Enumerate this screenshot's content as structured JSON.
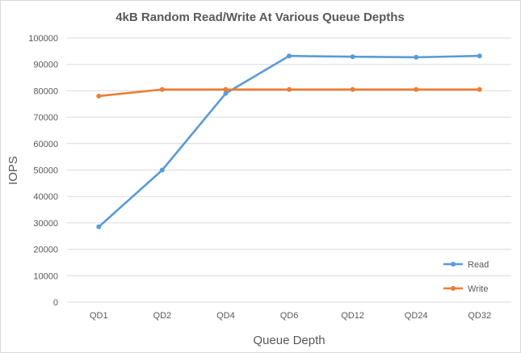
{
  "chart_data": {
    "type": "line",
    "title": "4kB Random Read/Write At Various Queue Depths",
    "xlabel": "Queue Depth",
    "ylabel": "IOPS",
    "categories": [
      "QD1",
      "QD2",
      "QD4",
      "QD6",
      "QD12",
      "QD24",
      "QD32"
    ],
    "ylim": [
      0,
      100000
    ],
    "yticks": [
      0,
      10000,
      20000,
      30000,
      40000,
      50000,
      60000,
      70000,
      80000,
      90000,
      100000
    ],
    "grid": true,
    "legend_position": "bottom-right",
    "series": [
      {
        "name": "Read",
        "color": "#5b9bd5",
        "values": [
          28500,
          50000,
          79000,
          93200,
          92900,
          92700,
          93200
        ]
      },
      {
        "name": "Write",
        "color": "#ed7d31",
        "values": [
          78000,
          80500,
          80500,
          80500,
          80500,
          80500,
          80500
        ]
      }
    ]
  }
}
